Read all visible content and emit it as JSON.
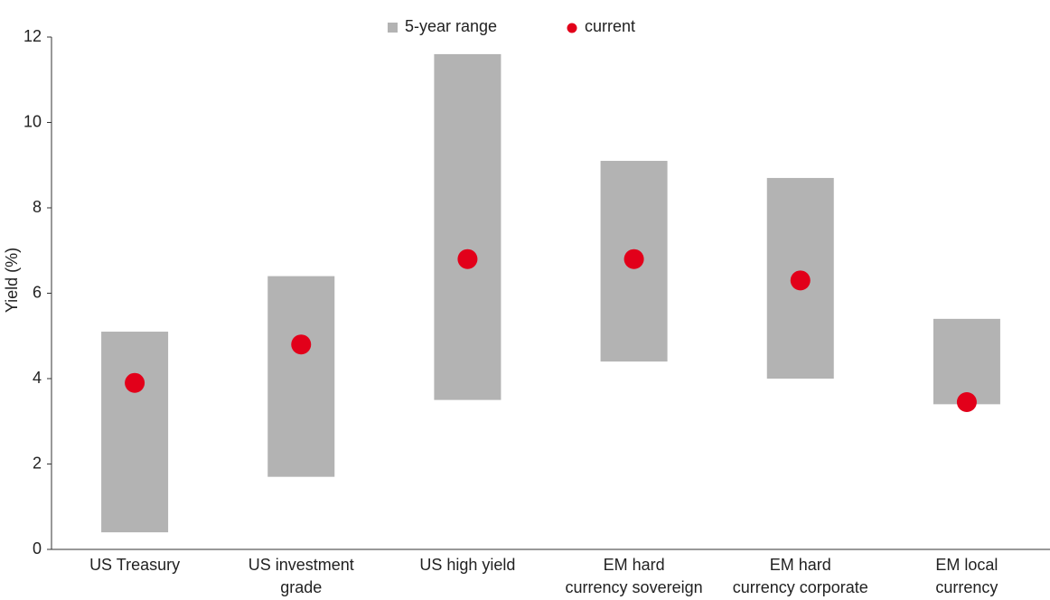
{
  "chart_data": {
    "type": "range_dot",
    "y_label": "Yield (%)",
    "categories": [
      [
        "US Treasury"
      ],
      [
        "US investment",
        "grade"
      ],
      [
        "US high yield"
      ],
      [
        "EM hard",
        "currency sovereign"
      ],
      [
        "EM hard",
        "currency corporate"
      ],
      [
        "EM local",
        "currency"
      ]
    ],
    "series": [
      {
        "name": "5-year range",
        "color": "#b3b3b3",
        "low": [
          0.4,
          1.7,
          3.5,
          4.4,
          4.0,
          3.4
        ],
        "high": [
          5.1,
          6.4,
          11.6,
          9.1,
          8.7,
          5.4
        ]
      },
      {
        "name": "current",
        "color": "#e2001a",
        "values": [
          3.9,
          4.8,
          6.8,
          6.8,
          6.3,
          3.45
        ]
      }
    ],
    "ylim": [
      0,
      12
    ],
    "yticks": [
      0,
      2,
      4,
      6,
      8,
      10,
      12
    ],
    "grid": false
  }
}
